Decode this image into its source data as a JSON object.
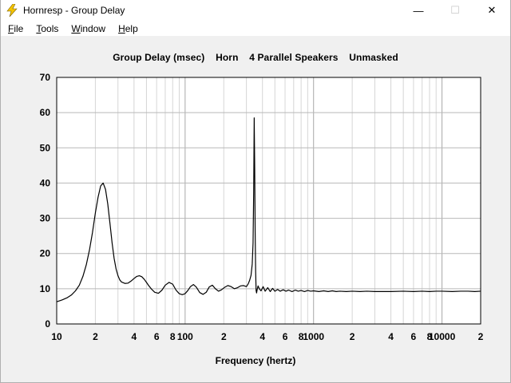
{
  "window": {
    "title": "Hornresp - Group Delay",
    "icon": "lightning-bolt-icon",
    "controls": {
      "minimize": "—",
      "maximize": "☐",
      "close": "✕"
    }
  },
  "menu": [
    {
      "underline": "F",
      "rest": "ile"
    },
    {
      "underline": "T",
      "rest": "ools"
    },
    {
      "underline": "W",
      "rest": "indow"
    },
    {
      "underline": "H",
      "rest": "elp"
    }
  ],
  "chart_data": {
    "type": "line",
    "title": "Group Delay (msec)    Horn    4 Parallel Speakers    Unmasked",
    "xlabel": "Frequency (hertz)",
    "ylabel": "",
    "xscale": "log",
    "xlim": [
      10,
      20000
    ],
    "ylim": [
      0,
      70
    ],
    "grid": true,
    "yticks": [
      0,
      10,
      20,
      30,
      40,
      50,
      60,
      70
    ],
    "xticks": [
      {
        "value": 10,
        "label": "10"
      },
      {
        "value": 20,
        "label": "2"
      },
      {
        "value": 40,
        "label": "4"
      },
      {
        "value": 60,
        "label": "6"
      },
      {
        "value": 80,
        "label": "8"
      },
      {
        "value": 100,
        "label": "100"
      },
      {
        "value": 200,
        "label": "2"
      },
      {
        "value": 400,
        "label": "4"
      },
      {
        "value": 600,
        "label": "6"
      },
      {
        "value": 800,
        "label": "8"
      },
      {
        "value": 1000,
        "label": "1000"
      },
      {
        "value": 2000,
        "label": "2"
      },
      {
        "value": 4000,
        "label": "4"
      },
      {
        "value": 6000,
        "label": "6"
      },
      {
        "value": 8000,
        "label": "8"
      },
      {
        "value": 10000,
        "label": "10000"
      },
      {
        "value": 20000,
        "label": "2"
      }
    ],
    "series": [
      {
        "color": "#000000",
        "x": [
          10,
          11,
          12,
          13,
          14,
          15,
          16,
          17,
          18,
          19,
          20,
          21,
          22,
          23,
          24,
          25,
          26,
          27,
          28,
          29,
          30,
          31,
          32,
          34,
          36,
          38,
          40,
          42,
          44,
          46,
          48,
          50,
          52,
          55,
          58,
          62,
          66,
          70,
          75,
          80,
          85,
          90,
          95,
          100,
          105,
          110,
          116,
          122,
          130,
          138,
          146,
          154,
          163,
          172,
          182,
          192,
          203,
          215,
          228,
          242,
          256,
          270,
          285,
          300,
          310,
          318,
          326,
          333,
          338,
          342,
          345,
          348,
          351,
          354,
          357,
          360,
          364,
          370,
          378,
          390,
          405,
          420,
          440,
          460,
          480,
          500,
          525,
          550,
          580,
          610,
          640,
          680,
          720,
          760,
          800,
          850,
          900,
          950,
          1000,
          1100,
          1200,
          1300,
          1400,
          1500,
          1600,
          1800,
          2000,
          2300,
          2600,
          3000,
          3500,
          4000,
          5000,
          6000,
          7000,
          8000,
          9000,
          10000,
          12000,
          14000,
          16000,
          18000,
          20000
        ],
        "y": [
          6.3,
          6.8,
          7.4,
          8.2,
          9.4,
          11.0,
          13.5,
          16.8,
          21.0,
          26.0,
          31.5,
          36.0,
          39.2,
          40.0,
          38.2,
          34.0,
          28.5,
          23.0,
          18.6,
          15.6,
          13.7,
          12.5,
          11.9,
          11.5,
          11.6,
          12.2,
          12.9,
          13.5,
          13.7,
          13.4,
          12.7,
          11.8,
          10.9,
          9.8,
          9.0,
          8.7,
          9.6,
          11.0,
          11.8,
          11.3,
          9.6,
          8.6,
          8.3,
          8.6,
          9.5,
          10.6,
          11.2,
          10.5,
          8.9,
          8.4,
          9.0,
          10.5,
          11.0,
          10.0,
          9.3,
          9.7,
          10.4,
          10.9,
          10.6,
          10.0,
          10.3,
          10.8,
          10.9,
          10.6,
          11.4,
          12.4,
          13.8,
          17.0,
          23.0,
          38.0,
          58.5,
          45.0,
          26.0,
          15.0,
          9.5,
          8.8,
          9.8,
          10.8,
          10.0,
          9.4,
          10.6,
          9.3,
          10.3,
          9.2,
          10.1,
          9.3,
          9.8,
          9.3,
          9.7,
          9.3,
          9.6,
          9.2,
          9.6,
          9.3,
          9.5,
          9.2,
          9.5,
          9.3,
          9.4,
          9.2,
          9.4,
          9.2,
          9.4,
          9.2,
          9.3,
          9.2,
          9.3,
          9.2,
          9.3,
          9.2,
          9.2,
          9.2,
          9.3,
          9.2,
          9.3,
          9.2,
          9.3,
          9.3,
          9.2,
          9.3,
          9.3,
          9.2,
          9.3
        ]
      }
    ]
  }
}
